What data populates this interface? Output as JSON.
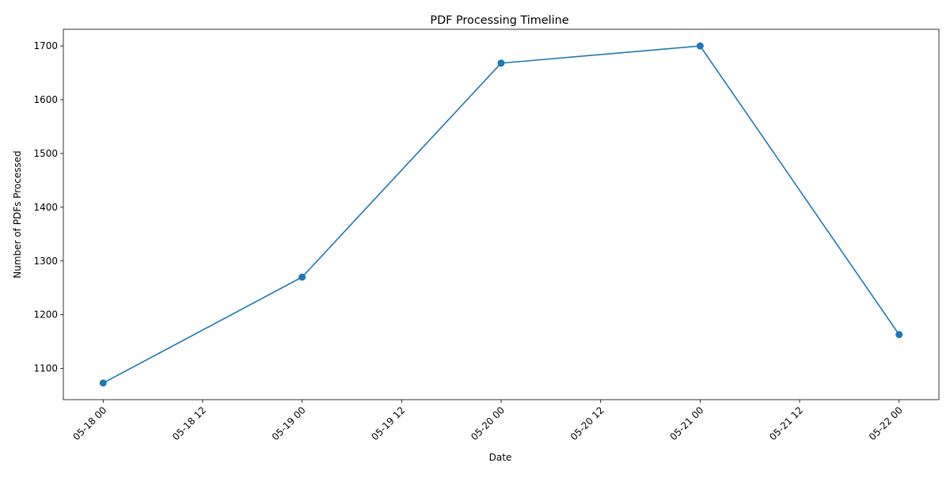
{
  "chart_data": {
    "type": "line",
    "title": "PDF Processing Timeline",
    "xlabel": "Date",
    "ylabel": "Number of PDFs Processed",
    "x": [
      "05-18 00",
      "05-19 00",
      "05-20 00",
      "05-21 00",
      "05-22 00"
    ],
    "series": [
      {
        "values": [
          1073,
          1270,
          1668,
          1700,
          1163
        ]
      }
    ],
    "x_ticks": [
      "05-18 00",
      "05-18 12",
      "05-19 00",
      "05-19 12",
      "05-20 00",
      "05-20 12",
      "05-21 00",
      "05-21 12",
      "05-22 00"
    ],
    "y_ticks": [
      1100,
      1200,
      1300,
      1400,
      1500,
      1600,
      1700
    ],
    "ylim": [
      1042,
      1731
    ],
    "grid": false,
    "marker": "circle",
    "line_color": "#1f77b4"
  }
}
